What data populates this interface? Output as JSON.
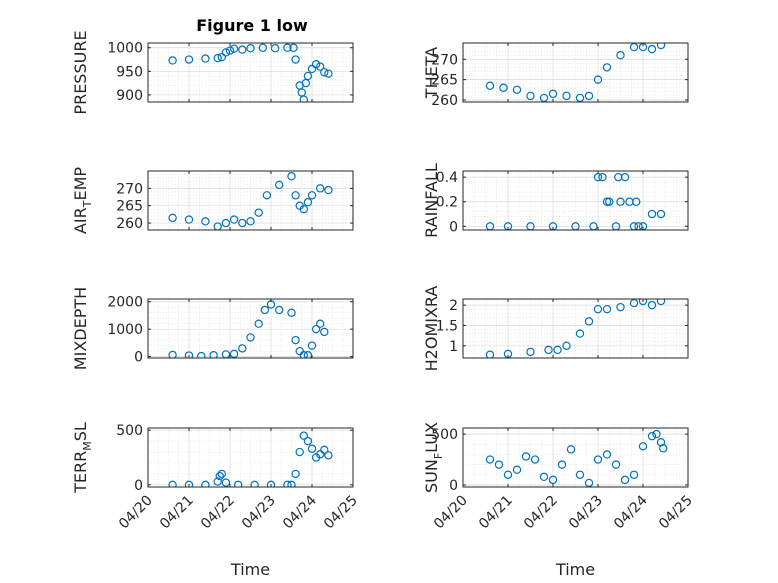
{
  "figure_title": "Figure 1 low",
  "colors": {
    "marker": "#0072BD",
    "axis": "#262626",
    "grid": "#dfdfdf"
  },
  "chart_data": [
    {
      "type": "scatter",
      "id": "pressure",
      "ylabel": {
        "text": "PRESSURE"
      },
      "ylim": [
        885,
        1010
      ],
      "yticks": [
        900,
        950,
        1000
      ],
      "xlim": [
        "04/20",
        "04/25"
      ],
      "xticks": [
        "04/20",
        "04/21",
        "04/22",
        "04/23",
        "04/24",
        "04/25"
      ],
      "grid": true,
      "show_xticklabels": false,
      "series": [
        {
          "x": [
            0.6,
            1.0,
            1.4,
            1.7,
            1.8,
            1.9,
            2.0,
            2.1,
            2.3,
            2.5,
            2.8,
            3.1,
            3.4,
            3.55,
            3.6,
            3.7,
            3.75,
            3.8,
            3.85,
            3.9,
            4.0,
            4.1,
            4.2,
            4.3,
            4.4
          ],
          "y": [
            973,
            975,
            977,
            978,
            980,
            990,
            994,
            998,
            996,
            999,
            1000,
            999,
            1000,
            1000,
            975,
            920,
            905,
            890,
            925,
            940,
            955,
            965,
            960,
            948,
            945
          ]
        }
      ]
    },
    {
      "type": "scatter",
      "id": "theta",
      "ylabel": {
        "text": "THETA"
      },
      "ylim": [
        259.5,
        274
      ],
      "yticks": [
        260,
        265,
        270
      ],
      "xlim": [
        "04/20",
        "04/25"
      ],
      "xticks": [
        "04/20",
        "04/21",
        "04/22",
        "04/23",
        "04/24",
        "04/25"
      ],
      "grid": true,
      "show_xticklabels": false,
      "series": [
        {
          "x": [
            0.6,
            0.9,
            1.2,
            1.5,
            1.8,
            2.0,
            2.3,
            2.6,
            2.8,
            3.0,
            3.2,
            3.5,
            3.8,
            4.0,
            4.2,
            4.4
          ],
          "y": [
            263.5,
            263,
            262.5,
            261,
            260.5,
            261.5,
            261,
            260.5,
            261,
            265,
            268,
            271,
            273,
            273,
            272.5,
            273.5
          ]
        }
      ]
    },
    {
      "type": "scatter",
      "id": "air_temp",
      "ylabel": {
        "text": "AIR",
        "sub": "T",
        "rest": "EMP"
      },
      "ylim": [
        258,
        275
      ],
      "yticks": [
        260,
        265,
        270
      ],
      "xlim": [
        "04/20",
        "04/25"
      ],
      "xticks": [
        "04/20",
        "04/21",
        "04/22",
        "04/23",
        "04/24",
        "04/25"
      ],
      "grid": true,
      "show_xticklabels": false,
      "series": [
        {
          "x": [
            0.6,
            1.0,
            1.4,
            1.7,
            1.9,
            2.1,
            2.3,
            2.5,
            2.7,
            2.9,
            3.2,
            3.5,
            3.6,
            3.7,
            3.8,
            3.9,
            4.0,
            4.2,
            4.4
          ],
          "y": [
            261.5,
            261,
            260.5,
            259,
            260,
            261,
            260,
            260.5,
            263,
            268,
            271,
            273.5,
            268,
            265,
            264,
            266,
            268,
            270,
            269.5
          ]
        }
      ]
    },
    {
      "type": "scatter",
      "id": "rainfall",
      "ylabel": {
        "text": "RAINFALL"
      },
      "ylim": [
        -0.03,
        0.45
      ],
      "yticks": [
        0,
        0.2,
        0.4
      ],
      "xlim": [
        "04/20",
        "04/25"
      ],
      "xticks": [
        "04/20",
        "04/21",
        "04/22",
        "04/23",
        "04/24",
        "04/25"
      ],
      "grid": true,
      "show_xticklabels": false,
      "series": [
        {
          "x": [
            0.6,
            1.0,
            1.5,
            2.0,
            2.5,
            2.9,
            3.0,
            3.1,
            3.2,
            3.25,
            3.4,
            3.45,
            3.5,
            3.6,
            3.7,
            3.8,
            3.85,
            3.9,
            4.0,
            4.2,
            4.4
          ],
          "y": [
            0,
            0,
            0,
            0,
            0,
            0,
            0.4,
            0.4,
            0.2,
            0.2,
            0,
            0.4,
            0.2,
            0.4,
            0.2,
            0,
            0.2,
            0,
            0,
            0.1,
            0.1
          ]
        }
      ]
    },
    {
      "type": "scatter",
      "id": "mixdepth",
      "ylabel": {
        "text": "MIXDEPTH"
      },
      "ylim": [
        -50,
        2100
      ],
      "yticks": [
        0,
        1000,
        2000
      ],
      "xlim": [
        "04/20",
        "04/25"
      ],
      "xticks": [
        "04/20",
        "04/21",
        "04/22",
        "04/23",
        "04/24",
        "04/25"
      ],
      "grid": true,
      "show_xticklabels": false,
      "series": [
        {
          "x": [
            0.6,
            1.0,
            1.3,
            1.6,
            1.9,
            2.1,
            2.3,
            2.5,
            2.7,
            2.85,
            3.0,
            3.2,
            3.5,
            3.6,
            3.7,
            3.8,
            3.9,
            4.0,
            4.1,
            4.2,
            4.3
          ],
          "y": [
            60,
            40,
            20,
            50,
            80,
            100,
            300,
            700,
            1200,
            1700,
            1900,
            1700,
            1600,
            600,
            200,
            50,
            50,
            400,
            1000,
            1200,
            900
          ]
        }
      ]
    },
    {
      "type": "scatter",
      "id": "h2omixra",
      "ylabel": {
        "text": "H2OMIXRA"
      },
      "ylim": [
        0.7,
        2.15
      ],
      "yticks": [
        1,
        1.5,
        2
      ],
      "xlim": [
        "04/20",
        "04/25"
      ],
      "xticks": [
        "04/20",
        "04/21",
        "04/22",
        "04/23",
        "04/24",
        "04/25"
      ],
      "grid": true,
      "show_xticklabels": false,
      "series": [
        {
          "x": [
            0.6,
            1.0,
            1.5,
            1.9,
            2.1,
            2.3,
            2.6,
            2.8,
            3.0,
            3.2,
            3.5,
            3.8,
            4.0,
            4.2,
            4.4
          ],
          "y": [
            0.78,
            0.8,
            0.85,
            0.9,
            0.9,
            1.0,
            1.3,
            1.6,
            1.9,
            1.9,
            1.95,
            2.05,
            2.1,
            2.0,
            2.1
          ]
        }
      ]
    },
    {
      "type": "scatter",
      "id": "terr_msl",
      "ylabel": {
        "text": "TERR",
        "sub": "M",
        "rest": "SL"
      },
      "ylim": [
        -20,
        520
      ],
      "yticks": [
        0,
        500
      ],
      "xlim": [
        "04/20",
        "04/25"
      ],
      "xticks": [
        "04/20",
        "04/21",
        "04/22",
        "04/23",
        "04/24",
        "04/25"
      ],
      "grid": true,
      "show_xticklabels": true,
      "xlabel": "Time",
      "series": [
        {
          "x": [
            0.6,
            1.0,
            1.4,
            1.7,
            1.75,
            1.8,
            1.9,
            2.2,
            2.6,
            3.0,
            3.4,
            3.5,
            3.6,
            3.7,
            3.8,
            3.9,
            4.0,
            4.1,
            4.2,
            4.3,
            4.4
          ],
          "y": [
            0,
            0,
            0,
            30,
            80,
            100,
            20,
            0,
            0,
            0,
            0,
            0,
            100,
            300,
            450,
            400,
            330,
            250,
            280,
            320,
            270
          ]
        }
      ]
    },
    {
      "type": "scatter",
      "id": "sun_flux",
      "ylabel": {
        "text": "SUN",
        "sub": "F",
        "rest": "LUX"
      },
      "ylim": [
        -20,
        560
      ],
      "yticks": [
        0,
        500
      ],
      "xlim": [
        "04/20",
        "04/25"
      ],
      "xticks": [
        "04/20",
        "04/21",
        "04/22",
        "04/23",
        "04/24",
        "04/25"
      ],
      "grid": true,
      "show_xticklabels": true,
      "xlabel": "Time",
      "series": [
        {
          "x": [
            0.6,
            0.8,
            1.0,
            1.2,
            1.4,
            1.6,
            1.8,
            2.0,
            2.2,
            2.4,
            2.6,
            2.8,
            3.0,
            3.2,
            3.4,
            3.6,
            3.8,
            4.0,
            4.2,
            4.3,
            4.4,
            4.45
          ],
          "y": [
            250,
            200,
            100,
            150,
            280,
            250,
            80,
            50,
            200,
            350,
            100,
            20,
            250,
            300,
            200,
            50,
            100,
            380,
            480,
            500,
            420,
            360
          ]
        }
      ]
    }
  ]
}
